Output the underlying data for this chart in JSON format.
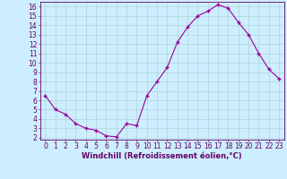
{
  "hours": [
    0,
    1,
    2,
    3,
    4,
    5,
    6,
    7,
    8,
    9,
    10,
    11,
    12,
    13,
    14,
    15,
    16,
    17,
    18,
    19,
    20,
    21,
    22,
    23
  ],
  "values": [
    6.5,
    5.0,
    4.5,
    3.5,
    3.0,
    2.8,
    2.2,
    2.1,
    3.5,
    3.3,
    6.5,
    8.0,
    9.5,
    12.2,
    13.8,
    15.0,
    15.5,
    16.2,
    15.8,
    14.3,
    13.0,
    11.0,
    9.3,
    8.3
  ],
  "line_color": "#990099",
  "marker": "+",
  "marker_size": 3,
  "marker_lw": 1.0,
  "bg_color": "#cceeff",
  "grid_color": "#aacccc",
  "xlabel": "Windchill (Refroidissement éolien,°C)",
  "xlim": [
    -0.5,
    23.5
  ],
  "ylim": [
    1.8,
    16.5
  ],
  "yticks": [
    2,
    3,
    4,
    5,
    6,
    7,
    8,
    9,
    10,
    11,
    12,
    13,
    14,
    15,
    16
  ],
  "xticks": [
    0,
    1,
    2,
    3,
    4,
    5,
    6,
    7,
    8,
    9,
    10,
    11,
    12,
    13,
    14,
    15,
    16,
    17,
    18,
    19,
    20,
    21,
    22,
    23
  ],
  "label_color": "#660066",
  "tick_color": "#660066",
  "axis_color": "#660066",
  "font_size": 5.5,
  "xlabel_size": 6.0,
  "linewidth": 0.8
}
